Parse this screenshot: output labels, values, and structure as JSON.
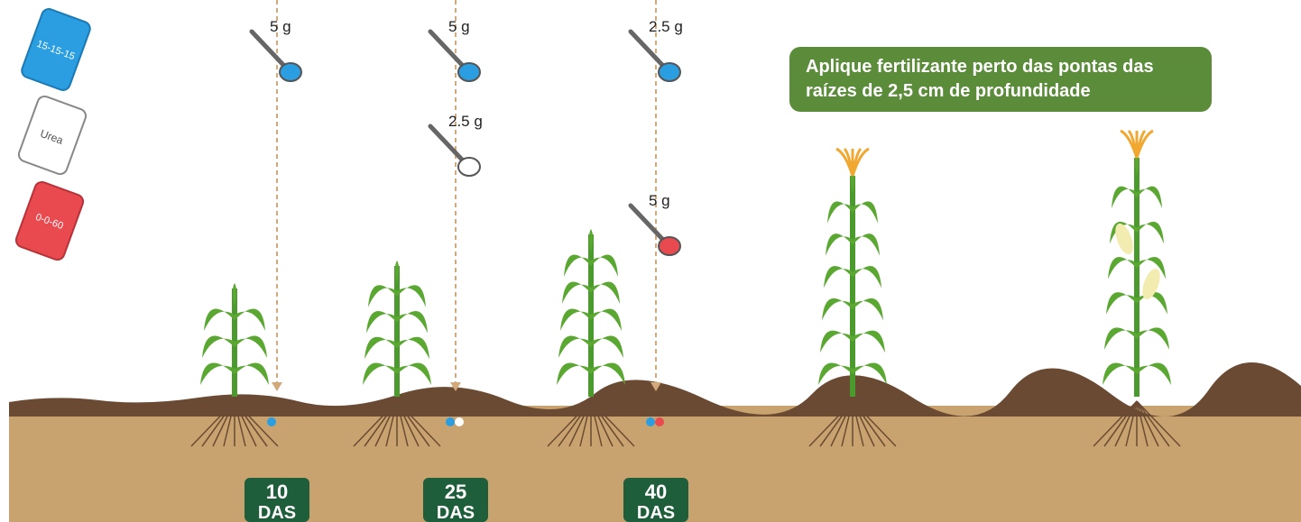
{
  "bags": [
    {
      "label": "15-15-15"
    },
    {
      "label": "Urea"
    },
    {
      "label": "0-0-60"
    }
  ],
  "callout": {
    "lines": [
      "Aplique fertilizante perto das pontas das",
      "raízes de 2,5 cm de profundidade"
    ]
  },
  "applications": [
    {
      "doses": [
        {
          "amount": "5 g"
        }
      ],
      "day": "10",
      "unit": "DAS"
    },
    {
      "doses": [
        {
          "amount": "5 g"
        },
        {
          "amount": "2.5 g"
        }
      ],
      "day": "25",
      "unit": "DAS"
    },
    {
      "doses": [
        {
          "amount": "2.5 g"
        },
        {
          "amount": "5 g"
        }
      ],
      "day": "40",
      "unit": "DAS"
    }
  ]
}
